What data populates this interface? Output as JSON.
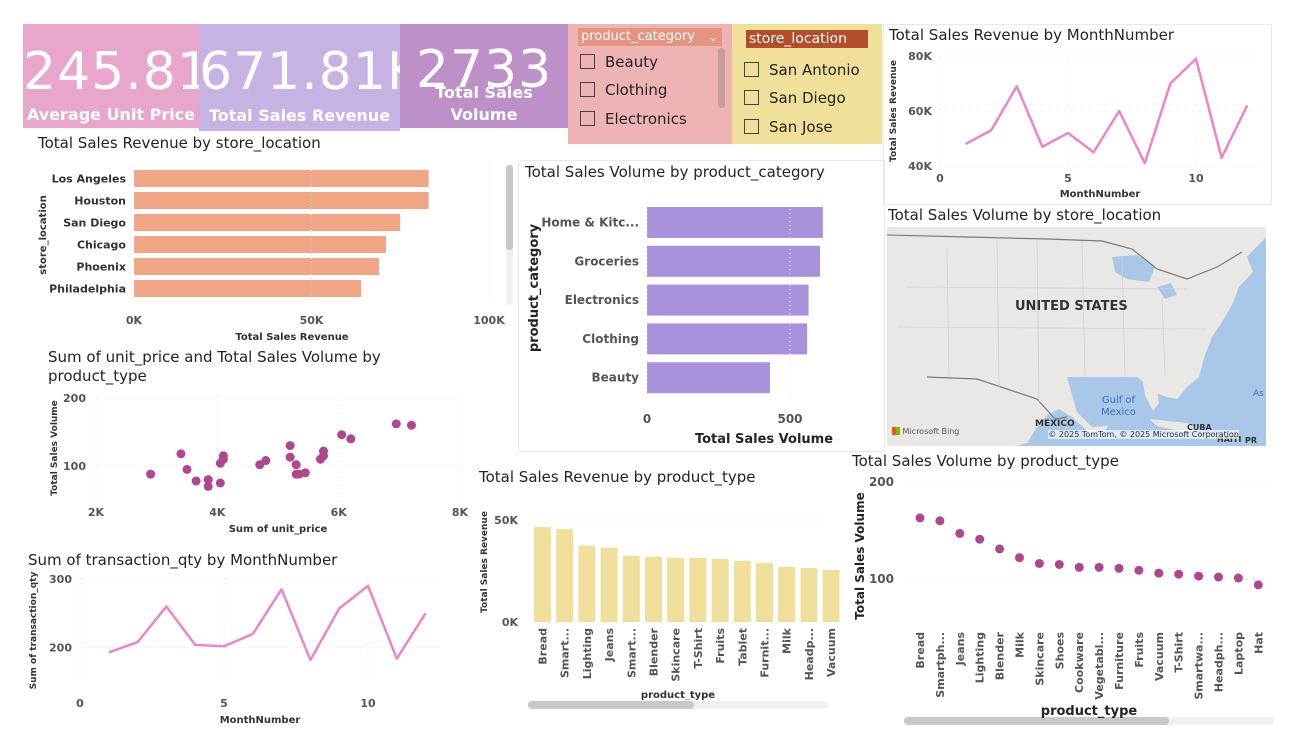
{
  "kpis": [
    {
      "value": "245.81",
      "label": "Average Unit Price",
      "color": "#e9a6cc"
    },
    {
      "value": "671.81K",
      "label": "Total Sales Revenue",
      "color": "#c6b3e4"
    },
    {
      "value": "2733",
      "label": "Total Sales Volume",
      "color": "#be90c8"
    }
  ],
  "slicer_category": {
    "title": "product_category",
    "items": [
      "Beauty",
      "Clothing",
      "Electronics"
    ],
    "bg": "#eeb3b5",
    "header_bg": "#e6947f"
  },
  "slicer_location": {
    "title": "store_location",
    "items": [
      "San Antonio",
      "San Diego",
      "San Jose"
    ],
    "bg": "#f0e09a",
    "header_bg": "#b54d2c"
  },
  "map": {
    "title": "Total Sales Volume by store_location",
    "country_label": "UNITED STATES",
    "labels": [
      "Gulf of",
      "Mexico",
      "MEXICO",
      "CUBA",
      "HAITI",
      "PR",
      "As"
    ],
    "logo": "Microsoft Bing",
    "attribution": "© 2025 TomTom, © 2025 Microsoft Corporation"
  },
  "chart_data": [
    {
      "id": "rev-by-location",
      "type": "bar",
      "orientation": "horizontal",
      "title": "Total Sales Revenue by store_location",
      "xlabel": "Total Sales Revenue",
      "ylabel": "store_location",
      "categories": [
        "Los Angeles",
        "Houston",
        "San Diego",
        "Chicago",
        "Phoenix",
        "Philadelphia"
      ],
      "values": [
        83000,
        83000,
        75000,
        71000,
        69000,
        64000
      ],
      "xlim": [
        0,
        100000
      ],
      "xticks": [
        "0K",
        "50K",
        "100K"
      ],
      "color": "#f0a584"
    },
    {
      "id": "vol-by-category",
      "type": "bar",
      "orientation": "horizontal",
      "title": "Total Sales Volume by product_category",
      "xlabel": "Total Sales Volume",
      "ylabel": "product_category",
      "categories": [
        "Home & Kitc...",
        "Groceries",
        "Electronics",
        "Clothing",
        "Beauty"
      ],
      "values": [
        615,
        605,
        565,
        560,
        430
      ],
      "xlim": [
        0,
        700
      ],
      "xticks": [
        "0",
        "500"
      ],
      "color": "#a992dc"
    },
    {
      "id": "rev-by-month",
      "type": "line",
      "title": "Total Sales Revenue by MonthNumber",
      "xlabel": "MonthNumber",
      "ylabel": "Total Sales Revenue",
      "x": [
        1,
        2,
        3,
        4,
        5,
        6,
        7,
        8,
        9,
        10,
        11,
        12
      ],
      "values": [
        48000,
        53000,
        69000,
        47000,
        52000,
        45000,
        60000,
        41000,
        70000,
        79000,
        43000,
        62000
      ],
      "xlim": [
        0,
        12.5
      ],
      "ylim": [
        40000,
        80000
      ],
      "xticks": [
        "0",
        "5",
        "10"
      ],
      "yticks": [
        "40K",
        "60K",
        "80K"
      ],
      "color": "#e986c5"
    },
    {
      "id": "price-vs-volume",
      "type": "scatter",
      "title": "Sum of unit_price and Total Sales Volume by product_type",
      "title_lines": [
        "Sum of unit_price and Total Sales Volume by",
        "product_type"
      ],
      "xlabel": "Sum of unit_price",
      "ylabel": "Total Sales Volume",
      "points": [
        [
          2900,
          88
        ],
        [
          3400,
          118
        ],
        [
          3500,
          95
        ],
        [
          3650,
          78
        ],
        [
          3850,
          80
        ],
        [
          3850,
          70
        ],
        [
          4050,
          104
        ],
        [
          4050,
          75
        ],
        [
          4100,
          110
        ],
        [
          4100,
          115
        ],
        [
          4700,
          102
        ],
        [
          4800,
          108
        ],
        [
          5200,
          130
        ],
        [
          5200,
          113
        ],
        [
          5300,
          102
        ],
        [
          5300,
          88
        ],
        [
          5350,
          88
        ],
        [
          5450,
          90
        ],
        [
          5700,
          110
        ],
        [
          5750,
          115
        ],
        [
          5750,
          122
        ],
        [
          6050,
          146
        ],
        [
          6200,
          140
        ],
        [
          6950,
          162
        ],
        [
          7200,
          160
        ]
      ],
      "xlim": [
        2000,
        8000
      ],
      "ylim": [
        50,
        200
      ],
      "xticks": [
        "2K",
        "4K",
        "6K",
        "8K"
      ],
      "yticks": [
        "100",
        "200"
      ],
      "color": "#b0468e"
    },
    {
      "id": "qty-by-month",
      "type": "line",
      "title": "Sum of transaction_qty by MonthNumber",
      "xlabel": "MonthNumber",
      "ylabel": "Sum of transaction_qty",
      "x": [
        1,
        2,
        3,
        4,
        5,
        6,
        7,
        8,
        9,
        10,
        11,
        12
      ],
      "values": [
        193,
        208,
        260,
        204,
        202,
        220,
        285,
        182,
        257,
        290,
        184,
        250
      ],
      "xlim": [
        0,
        12.5
      ],
      "ylim": [
        150,
        300
      ],
      "xticks": [
        "0",
        "5",
        "10"
      ],
      "yticks": [
        "200",
        "300"
      ],
      "color": "#e986c5"
    },
    {
      "id": "rev-by-type",
      "type": "bar",
      "orientation": "vertical",
      "title": "Total Sales Revenue by product_type",
      "xlabel": "product_type",
      "ylabel": "Total Sales Revenue",
      "categories": [
        "Bread",
        "Smart...",
        "Lighting",
        "Jeans",
        "Smart...",
        "Blender",
        "Skincare",
        "T-Shirt",
        "Fruits",
        "Tablet",
        "Furnit...",
        "Milk",
        "Headp...",
        "Vacuum"
      ],
      "values": [
        46500,
        45500,
        37500,
        36500,
        32500,
        32000,
        31500,
        31500,
        31000,
        30000,
        29000,
        27000,
        26500,
        25500
      ],
      "ylim": [
        0,
        55000
      ],
      "yticks": [
        "0K",
        "50K"
      ],
      "color": "#efdf9a"
    },
    {
      "id": "vol-by-type",
      "type": "scatter",
      "title": "Total Sales Volume by product_type",
      "xlabel": "product_type",
      "ylabel": "Total Sales Volume",
      "categories": [
        "Bread",
        "Smartph...",
        "Jeans",
        "Lighting",
        "Blender",
        "Milk",
        "Skincare",
        "Shoes",
        "Cookware",
        "Vegetabl...",
        "Furniture",
        "Fruits",
        "Vacuum",
        "T-Shirt",
        "Smartwa...",
        "Headph...",
        "Laptop",
        "Hat"
      ],
      "values": [
        163,
        160,
        147,
        141,
        131,
        122,
        116,
        115,
        112,
        112,
        111,
        109,
        106,
        105,
        103,
        102,
        101,
        94
      ],
      "ylim": [
        75,
        205
      ],
      "yticks": [
        "100",
        "200"
      ],
      "color": "#b0468e"
    }
  ]
}
